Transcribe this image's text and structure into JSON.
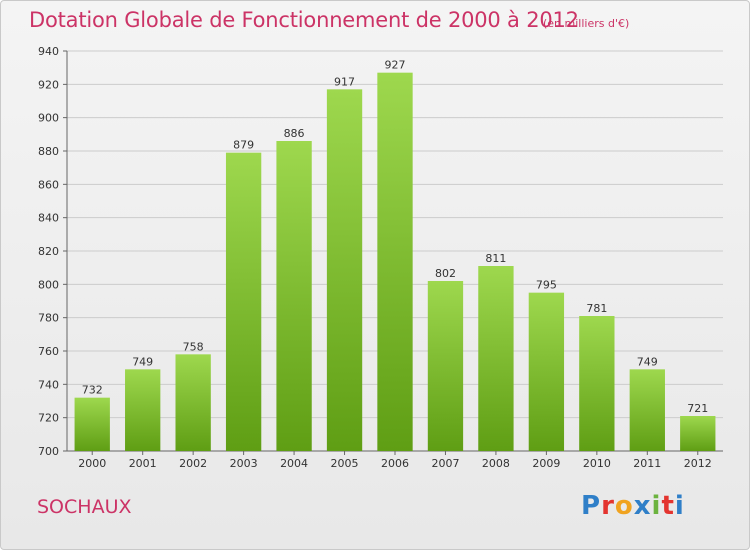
{
  "title": "Dotation Globale de Fonctionnement de 2000 à 2012",
  "unit_note": "(en milliers d'€)",
  "commune": "SOCHAUX",
  "logo": {
    "letters": [
      "P",
      "r",
      "o",
      "x",
      "i",
      "t",
      "i"
    ],
    "colors": [
      "#2f7fc8",
      "#e3342f",
      "#f0a320",
      "#2f7fc8",
      "#6cb33f",
      "#e3342f",
      "#2f7fc8"
    ]
  },
  "colors": {
    "title": "#cc3366",
    "bar_top": "#9ed84e",
    "bar_bottom": "#5f9e14",
    "grid": "#cccccc"
  },
  "chart_data": {
    "type": "bar",
    "categories": [
      "2000",
      "2001",
      "2002",
      "2003",
      "2004",
      "2005",
      "2006",
      "2007",
      "2008",
      "2009",
      "2010",
      "2011",
      "2012"
    ],
    "values": [
      732,
      749,
      758,
      879,
      886,
      917,
      927,
      802,
      811,
      795,
      781,
      749,
      721
    ],
    "title": "Dotation Globale de Fonctionnement de 2000 à 2012",
    "xlabel": "",
    "ylabel": "",
    "ylim": [
      700,
      940
    ],
    "yticks": [
      700,
      720,
      740,
      760,
      780,
      800,
      820,
      840,
      860,
      880,
      900,
      920,
      940
    ],
    "grid": true,
    "legend": "none"
  }
}
